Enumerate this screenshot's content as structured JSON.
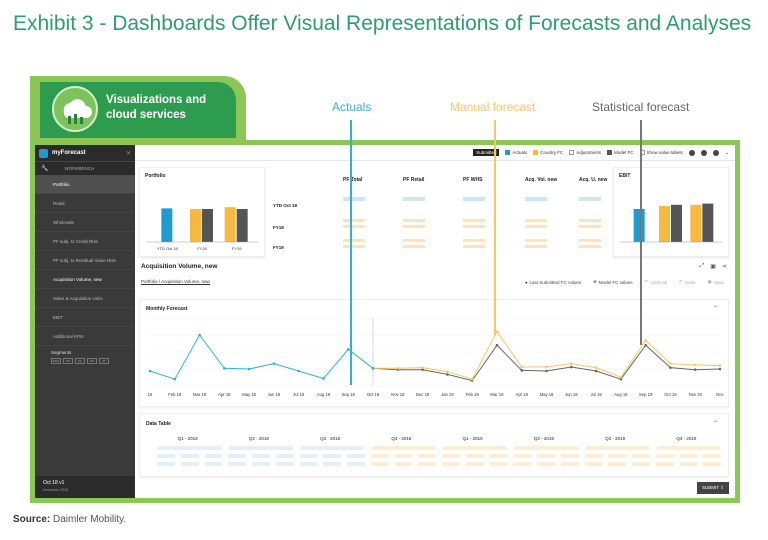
{
  "title": "Exhibit 3 - Dashboards Offer Visual Representations of Forecasts and Analyses",
  "source_label": "Source:",
  "source_text": "Daimler Mobility.",
  "tab_label_line1": "Visualizations and",
  "tab_label_line2": "cloud services",
  "annotations": [
    {
      "label": "Actuals",
      "color": "#30b2cc"
    },
    {
      "label": "Manual forecast",
      "color": "#f5c66a"
    },
    {
      "label": "Statistical forecast",
      "color": "#666666"
    }
  ],
  "app": {
    "name": "myForecast",
    "workbench": "WORKBENCH",
    "sidebar_items": [
      {
        "label": "Portfolio",
        "head": true
      },
      {
        "label": "Retail"
      },
      {
        "label": "Wholesale"
      },
      {
        "label": "PF subj. to Credit Risk"
      },
      {
        "label": "PF subj. to Residual Value Risk"
      },
      {
        "label": "Acquisition Volume, new",
        "active": true
      },
      {
        "label": "Sales & Acquisition Units"
      },
      {
        "label": "EBIT"
      },
      {
        "label": "Additional KPIs"
      }
    ],
    "segments_label": "Segments",
    "segment_codes": [
      "RRG",
      "FR",
      "FA",
      "DU",
      "ZT"
    ],
    "version_label": "Oct 18 v1",
    "version_date": "November 2018",
    "topbar": {
      "submitted": "Submitted",
      "legend": [
        {
          "label": "Actuals",
          "color": "#1f9bd1"
        },
        {
          "label": "Country FC",
          "color": "#f5b940"
        },
        {
          "label": "Adjustments",
          "color": "#ffffff"
        },
        {
          "label": "Model FC",
          "color": "#555555"
        }
      ],
      "show_values": "Show value labels"
    },
    "kpi": {
      "portfolio_title": "Portfolio",
      "portfolio_bars": [
        {
          "label": "YTD Oct 18",
          "values": [
            0.56
          ],
          "colors": [
            "#1f9bd1"
          ]
        },
        {
          "label": "FY18",
          "values": [
            0.55,
            0.55
          ],
          "colors": [
            "#f5b940",
            "#555555"
          ]
        },
        {
          "label": "FY19",
          "values": [
            0.58,
            0.55
          ],
          "colors": [
            "#f5b940",
            "#555555"
          ]
        }
      ],
      "columns": [
        "PF Total",
        "PF Retail",
        "PF WHS",
        "Acq. Vol. new",
        "Acq. U. new"
      ],
      "rows": [
        "YTD Oct 18",
        "FY18",
        "FY19"
      ],
      "ebit_title": "EBIT",
      "ebit_bars": [
        {
          "label": "",
          "values": [
            0.55
          ],
          "colors": [
            "#1f9bd1"
          ]
        },
        {
          "label": "",
          "values": [
            0.6,
            0.62
          ],
          "colors": [
            "#f5b940",
            "#555555"
          ]
        },
        {
          "label": "",
          "values": [
            0.62,
            0.64
          ],
          "colors": [
            "#f5b940",
            "#555555"
          ]
        }
      ]
    },
    "section_title": "Acquisition Volume, new",
    "breadcrumb": "Portfolio / Acquisition Volume, new",
    "actions": [
      "Last Submitted FC values",
      "Model FC values",
      "Undo all",
      "Undo",
      "Save"
    ],
    "forecast_title": "Monthly Forecast",
    "data_table_title": "Data Table",
    "quarters": [
      "Q1 - 2018",
      "Q2 - 2018",
      "Q3 - 2018",
      "Q4 - 2018",
      "Q1 - 2019",
      "Q2 - 2019",
      "Q3 - 2019",
      "Q4 - 2019"
    ],
    "submit": "SUBMIT"
  },
  "chart_data": {
    "type": "line",
    "x": [
      "18",
      "Feb 18",
      "Mar 18",
      "Apr 18",
      "May 18",
      "Jun 18",
      "Jul 18",
      "Aug 18",
      "Sep 18",
      "Oct 18",
      "Nov 18",
      "Dec 18",
      "Jan 19",
      "Feb 19",
      "Mar 19",
      "Apr 19",
      "May 19",
      "Jun 19",
      "Jul 19",
      "Aug 19",
      "Sep 19",
      "Oct 19",
      "Nov 19",
      "Dec"
    ],
    "series": [
      {
        "name": "Actuals",
        "color": "#30b2cc",
        "values": [
          22,
          10,
          75,
          26,
          25,
          33,
          22,
          11,
          54,
          26,
          null,
          null,
          null,
          null,
          null,
          null,
          null,
          null,
          null,
          null,
          null,
          null,
          null,
          null
        ]
      },
      {
        "name": "Country FC",
        "color": "#f5c66a",
        "values": [
          null,
          null,
          null,
          null,
          null,
          null,
          null,
          null,
          null,
          26,
          26,
          27,
          21,
          10,
          80,
          28,
          28,
          33,
          27,
          13,
          67,
          33,
          31,
          30
        ]
      },
      {
        "name": "Model FC",
        "color": "#666666",
        "values": [
          null,
          null,
          null,
          null,
          null,
          null,
          null,
          null,
          null,
          26,
          24,
          24,
          17,
          8,
          60,
          23,
          22,
          28,
          22,
          10,
          60,
          27,
          24,
          25
        ]
      }
    ],
    "ylim": [
      0,
      100
    ]
  }
}
